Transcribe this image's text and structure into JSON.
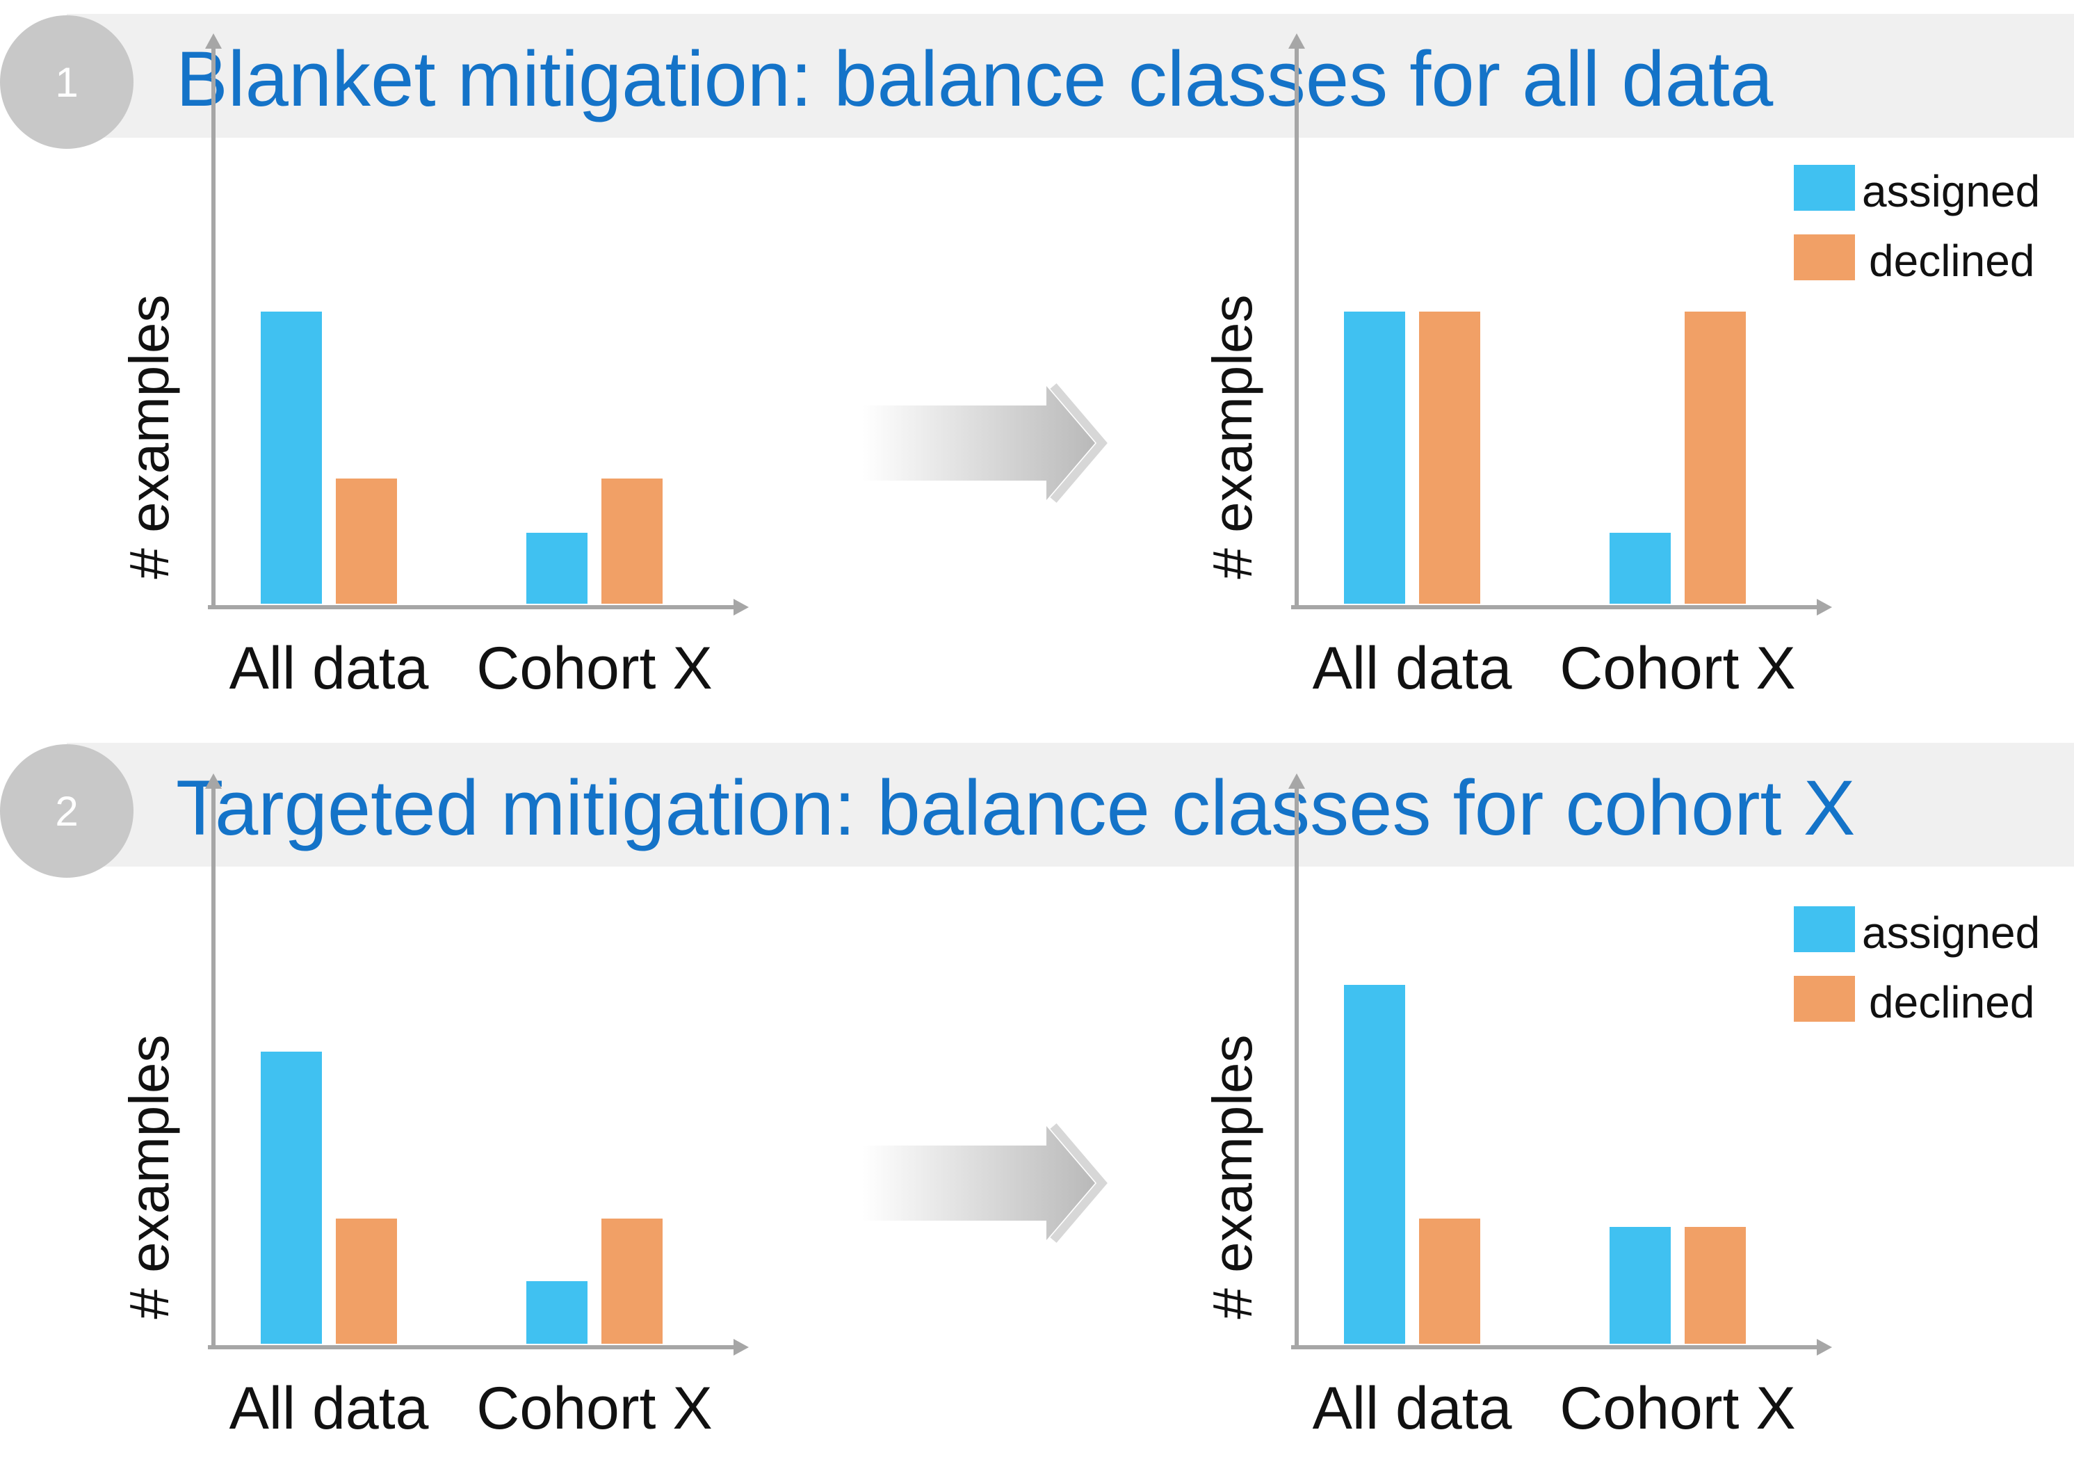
{
  "sections": [
    {
      "number": "1",
      "title": "Blanket mitigation: balance classes for all data"
    },
    {
      "number": "2",
      "title": "Targeted mitigation: balance classes for cohort X"
    }
  ],
  "legend": [
    {
      "label": "assigned",
      "color": "#40c1f1"
    },
    {
      "label": "declined",
      "color": "#f1a066"
    }
  ],
  "arrow_icon": "double-chevron-arrow-icon",
  "chart_data": [
    {
      "type": "bar",
      "title": "",
      "xlabel": "",
      "ylabel": "# examples",
      "categories": [
        "All data",
        "Cohort X"
      ],
      "ylim": [
        0,
        12
      ],
      "grid": false,
      "series": [
        {
          "name": "assigned",
          "values": [
            7,
            1.7
          ]
        },
        {
          "name": "declined",
          "values": [
            3,
            3
          ]
        }
      ]
    },
    {
      "type": "bar",
      "title": "",
      "xlabel": "",
      "ylabel": "# examples",
      "categories": [
        "All data",
        "Cohort X"
      ],
      "ylim": [
        0,
        12
      ],
      "grid": false,
      "legend": "top-right",
      "series": [
        {
          "name": "assigned",
          "values": [
            7,
            1.7
          ]
        },
        {
          "name": "declined",
          "values": [
            7,
            7
          ]
        }
      ]
    },
    {
      "type": "bar",
      "title": "",
      "xlabel": "",
      "ylabel": "# examples",
      "categories": [
        "All data",
        "Cohort X"
      ],
      "ylim": [
        0,
        12
      ],
      "grid": false,
      "series": [
        {
          "name": "assigned",
          "values": [
            7,
            1.5
          ]
        },
        {
          "name": "declined",
          "values": [
            3,
            3
          ]
        }
      ]
    },
    {
      "type": "bar",
      "title": "",
      "xlabel": "",
      "ylabel": "# examples",
      "categories": [
        "All data",
        "Cohort X"
      ],
      "ylim": [
        0,
        12
      ],
      "grid": false,
      "legend": "top-right",
      "series": [
        {
          "name": "assigned",
          "values": [
            8.6,
            2.8
          ]
        },
        {
          "name": "declined",
          "values": [
            3,
            2.8
          ]
        }
      ]
    }
  ]
}
